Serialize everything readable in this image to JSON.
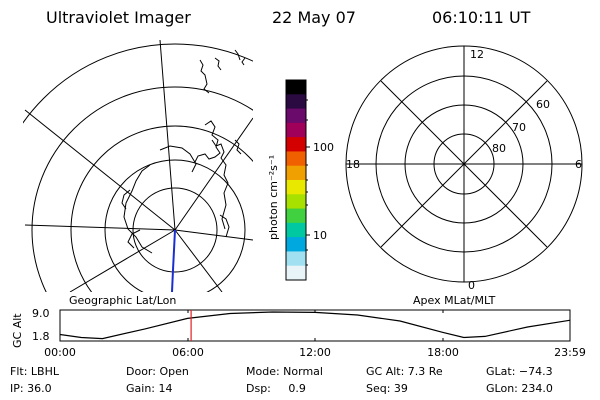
{
  "header": {
    "instrument": "Ultraviolet Imager",
    "date": "22 May 07",
    "time": "06:10:11 UT"
  },
  "left_panel": {
    "caption": "Geographic Lat/Lon"
  },
  "colorbar": {
    "unit_label": "photon cm⁻²s⁻¹",
    "ticks": [
      {
        "value": "100"
      },
      {
        "value": "10"
      }
    ],
    "colors": [
      "#000000",
      "#2a0a40",
      "#6a0a6a",
      "#a0005a",
      "#d40000",
      "#f06000",
      "#f0a000",
      "#e8e800",
      "#a8e000",
      "#40d040",
      "#00c8a0",
      "#00a8e0",
      "#a0e0f0",
      "#e8f4f8"
    ]
  },
  "right_panel": {
    "caption": "Apex MLat/MLT",
    "mlt_labels": {
      "top": "12",
      "left": "18",
      "right": "6",
      "bottom": "0"
    },
    "mlat_labels": [
      "60",
      "70",
      "80"
    ]
  },
  "altitude_plot": {
    "ylabel": "GC Alt",
    "yticks": [
      "9.0",
      "1.8"
    ],
    "xticks": [
      "00:00",
      "06:00",
      "12:00",
      "18:00",
      "23:59"
    ]
  },
  "chart_data": {
    "type": "line",
    "xlabel": "",
    "ylabel": "GC Alt",
    "ylim": [
      1.8,
      9.0
    ],
    "xlim_hours": [
      0,
      24
    ],
    "marker_hour": 6.17,
    "x": [
      0,
      1,
      2,
      4,
      6,
      8,
      10,
      12,
      14,
      16,
      18,
      19,
      20,
      22,
      23.98
    ],
    "y": [
      3.0,
      2.2,
      1.9,
      4.5,
      7.3,
      8.6,
      9.0,
      8.9,
      8.2,
      6.6,
      3.6,
      2.2,
      2.5,
      5.0,
      6.8
    ]
  },
  "status": {
    "flt": "Flt: LBHL",
    "door": "Door: Open",
    "mode": "Mode: Normal",
    "gc_alt": "GC Alt: 7.3 Re",
    "glat": "GLat: −74.3",
    "ip": "IP: 36.0",
    "gain": "Gain: 14",
    "dsp": "Dsp:     0.9",
    "seq": "Seq: 39",
    "glon": "GLon: 234.0"
  }
}
